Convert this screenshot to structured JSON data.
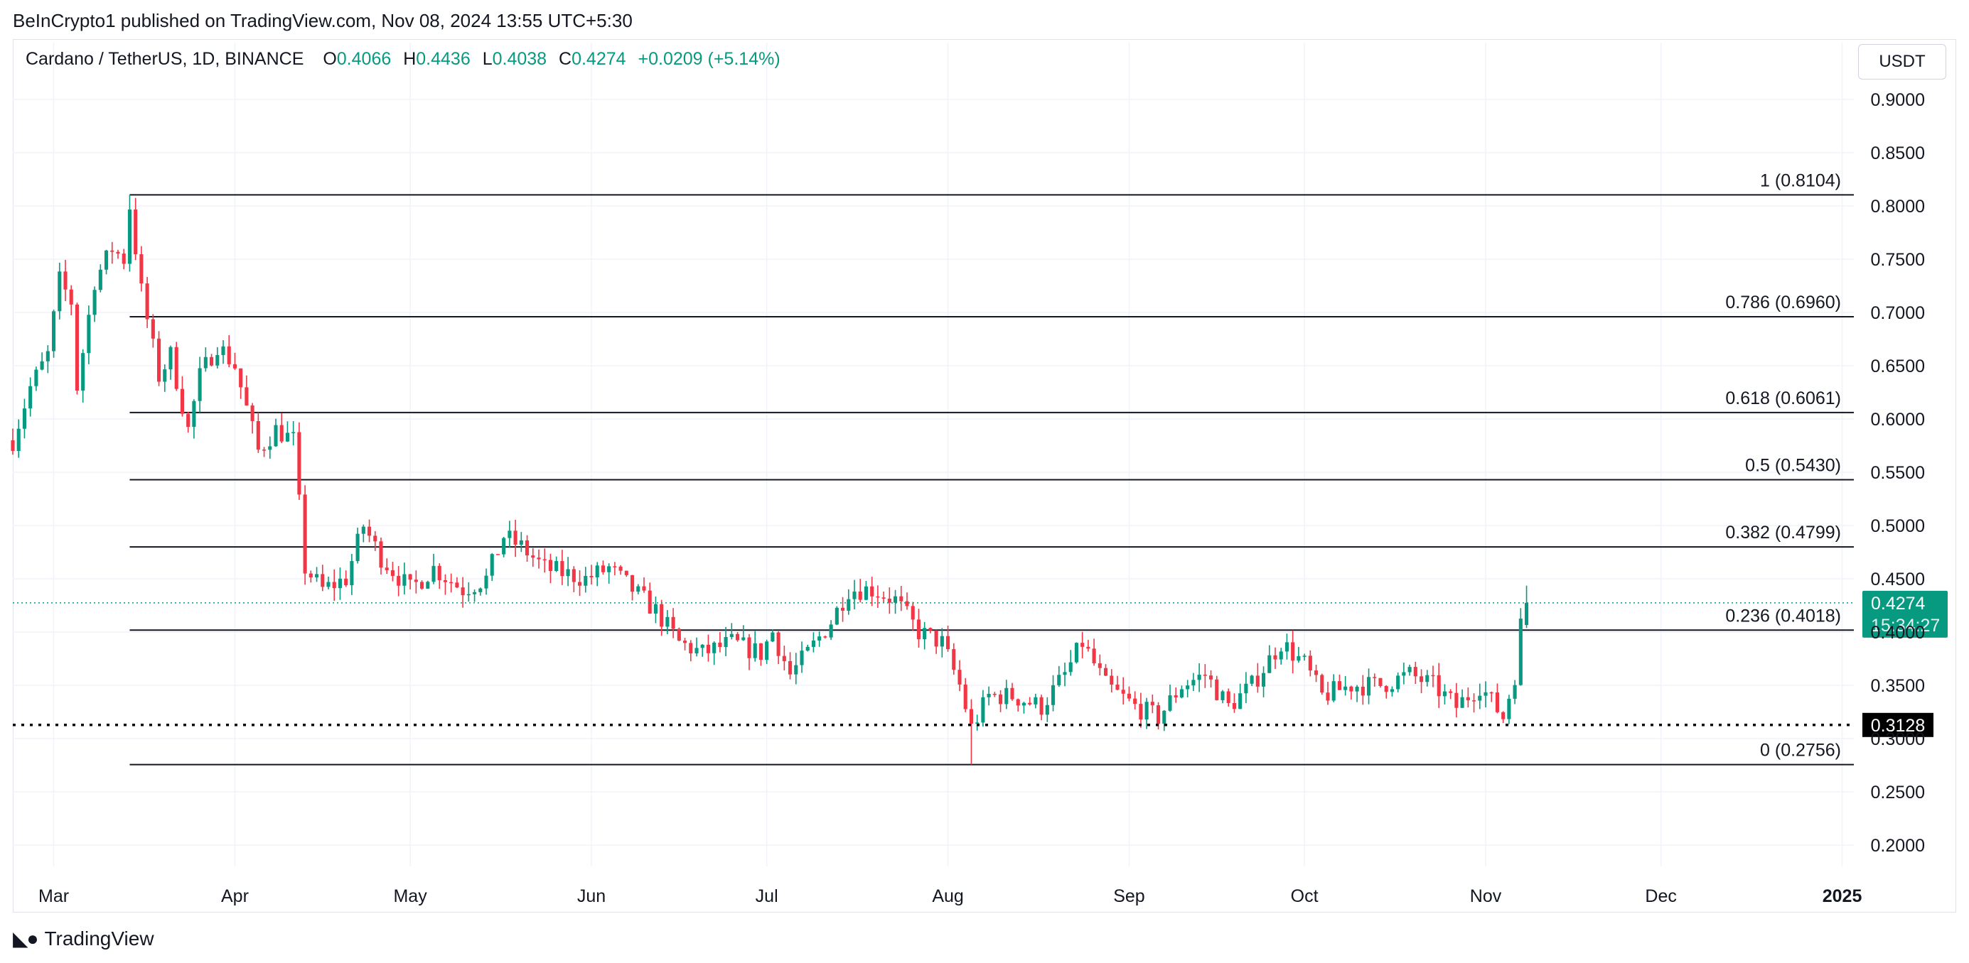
{
  "header": {
    "publisher": "BeInCrypto1 published on TradingView.com, Nov 08, 2024 13:55 UTC+5:30"
  },
  "legend": {
    "symbol": "Cardano / TetherUS, 1D, BINANCE",
    "open_label": "O",
    "open_value": "0.4066",
    "high_label": "H",
    "high_value": "0.4436",
    "low_label": "L",
    "low_value": "0.4038",
    "close_label": "C",
    "close_value": "0.4274",
    "change": "+0.0209 (+5.14%)"
  },
  "currency_button": "USDT",
  "footer": {
    "logo_text": "TradingView"
  },
  "colors": {
    "up": "#089981",
    "down": "#f23645",
    "fib_line": "#131722",
    "grid": "#f0f3fa",
    "last_price_bg": "#089981",
    "support_bg": "#000000"
  },
  "chart_data": {
    "type": "candlestick",
    "title": "Cardano / TetherUS, 1D, BINANCE",
    "ylim": [
      0.18,
      0.92
    ],
    "x_range": [
      "2024-02-23",
      "2025-01-03"
    ],
    "y_ticks": [
      "0.9000",
      "0.8500",
      "0.8000",
      "0.7500",
      "0.7000",
      "0.6500",
      "0.6000",
      "0.5500",
      "0.5000",
      "0.4500",
      "0.4000",
      "0.3500",
      "0.3000",
      "0.2500",
      "0.2000"
    ],
    "x_ticks": [
      {
        "label": "Mar",
        "date": "2024-03-01"
      },
      {
        "label": "Apr",
        "date": "2024-04-01"
      },
      {
        "label": "May",
        "date": "2024-05-01"
      },
      {
        "label": "Jun",
        "date": "2024-06-01"
      },
      {
        "label": "Jul",
        "date": "2024-07-01"
      },
      {
        "label": "Aug",
        "date": "2024-08-01"
      },
      {
        "label": "Sep",
        "date": "2024-09-01"
      },
      {
        "label": "Oct",
        "date": "2024-10-01"
      },
      {
        "label": "Nov",
        "date": "2024-11-01"
      },
      {
        "label": "Dec",
        "date": "2024-12-01"
      },
      {
        "label": "2025",
        "date": "2025-01-01"
      }
    ],
    "fib_levels": [
      {
        "ratio": "1",
        "value": 0.8104,
        "label": "1 (0.8104)"
      },
      {
        "ratio": "0.786",
        "value": 0.696,
        "label": "0.786 (0.6960)"
      },
      {
        "ratio": "0.618",
        "value": 0.6061,
        "label": "0.618 (0.6061)"
      },
      {
        "ratio": "0.5",
        "value": 0.543,
        "label": "0.5 (0.5430)"
      },
      {
        "ratio": "0.382",
        "value": 0.4799,
        "label": "0.382 (0.4799)"
      },
      {
        "ratio": "0.236",
        "value": 0.4018,
        "label": "0.236 (0.4018)"
      },
      {
        "ratio": "0",
        "value": 0.2756,
        "label": "0 (0.2756)"
      }
    ],
    "fib_start_date": "2024-03-14",
    "support_level": {
      "value": 0.3128,
      "label": "0.3128"
    },
    "last_price": {
      "value": 0.4274,
      "label": "0.4274",
      "countdown": "15:34:27"
    },
    "candles_anchor_start": "2024-02-23",
    "close_path": [
      [
        "2024-02-23",
        0.58
      ],
      [
        "2024-02-26",
        0.63
      ],
      [
        "2024-02-29",
        0.66
      ],
      [
        "2024-03-02",
        0.73
      ],
      [
        "2024-03-04",
        0.71
      ],
      [
        "2024-03-05",
        0.63
      ],
      [
        "2024-03-08",
        0.73
      ],
      [
        "2024-03-11",
        0.76
      ],
      [
        "2024-03-13",
        0.75
      ],
      [
        "2024-03-14",
        0.8
      ],
      [
        "2024-03-16",
        0.72
      ],
      [
        "2024-03-19",
        0.64
      ],
      [
        "2024-03-21",
        0.66
      ],
      [
        "2024-03-24",
        0.59
      ],
      [
        "2024-03-26",
        0.64
      ],
      [
        "2024-03-29",
        0.67
      ],
      [
        "2024-04-01",
        0.65
      ],
      [
        "2024-04-05",
        0.57
      ],
      [
        "2024-04-08",
        0.59
      ],
      [
        "2024-04-11",
        0.58
      ],
      [
        "2024-04-13",
        0.46
      ],
      [
        "2024-04-16",
        0.44
      ],
      [
        "2024-04-20",
        0.45
      ],
      [
        "2024-04-23",
        0.5
      ],
      [
        "2024-04-26",
        0.47
      ],
      [
        "2024-05-01",
        0.44
      ],
      [
        "2024-05-05",
        0.46
      ],
      [
        "2024-05-10",
        0.44
      ],
      [
        "2024-05-14",
        0.45
      ],
      [
        "2024-05-17",
        0.49
      ],
      [
        "2024-05-20",
        0.48
      ],
      [
        "2024-05-24",
        0.46
      ],
      [
        "2024-05-31",
        0.45
      ],
      [
        "2024-06-04",
        0.46
      ],
      [
        "2024-06-08",
        0.44
      ],
      [
        "2024-06-12",
        0.42
      ],
      [
        "2024-06-16",
        0.39
      ],
      [
        "2024-06-20",
        0.38
      ],
      [
        "2024-06-25",
        0.39
      ],
      [
        "2024-06-30",
        0.38
      ],
      [
        "2024-07-02",
        0.4
      ],
      [
        "2024-07-05",
        0.36
      ],
      [
        "2024-07-08",
        0.38
      ],
      [
        "2024-07-12",
        0.41
      ],
      [
        "2024-07-15",
        0.44
      ],
      [
        "2024-07-19",
        0.44
      ],
      [
        "2024-07-23",
        0.43
      ],
      [
        "2024-07-27",
        0.4
      ],
      [
        "2024-07-31",
        0.39
      ],
      [
        "2024-08-03",
        0.35
      ],
      [
        "2024-08-05",
        0.31
      ],
      [
        "2024-08-08",
        0.34
      ],
      [
        "2024-08-12",
        0.34
      ],
      [
        "2024-08-17",
        0.33
      ],
      [
        "2024-08-21",
        0.36
      ],
      [
        "2024-08-24",
        0.39
      ],
      [
        "2024-08-28",
        0.35
      ],
      [
        "2024-09-02",
        0.33
      ],
      [
        "2024-09-06",
        0.32
      ],
      [
        "2024-09-10",
        0.35
      ],
      [
        "2024-09-14",
        0.36
      ],
      [
        "2024-09-18",
        0.33
      ],
      [
        "2024-09-22",
        0.35
      ],
      [
        "2024-09-27",
        0.39
      ],
      [
        "2024-10-01",
        0.37
      ],
      [
        "2024-10-04",
        0.34
      ],
      [
        "2024-10-09",
        0.35
      ],
      [
        "2024-10-14",
        0.35
      ],
      [
        "2024-10-19",
        0.36
      ],
      [
        "2024-10-23",
        0.35
      ],
      [
        "2024-10-27",
        0.33
      ],
      [
        "2024-10-31",
        0.35
      ],
      [
        "2024-11-04",
        0.32
      ],
      [
        "2024-11-06",
        0.36
      ],
      [
        "2024-11-07",
        0.4066
      ],
      [
        "2024-11-08",
        0.4274
      ]
    ],
    "annotated_extremes": [
      {
        "date": "2024-03-14",
        "type": "high",
        "value": 0.8104
      },
      {
        "date": "2024-08-05",
        "type": "low",
        "value": 0.2756
      },
      {
        "date": "2024-11-08",
        "type": "high",
        "value": 0.4436
      }
    ]
  }
}
